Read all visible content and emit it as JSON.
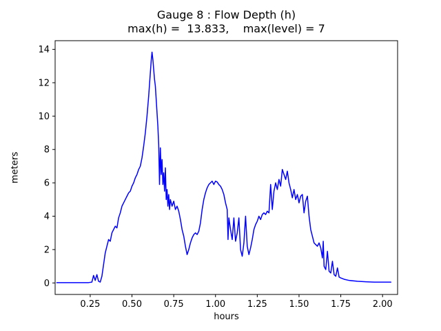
{
  "figure": {
    "title_line1": "Gauge 8 : Flow Depth (h)",
    "title_line2": "max(h) =  13.833,    max(level) = 7",
    "xlabel": "hours",
    "ylabel": "meters"
  },
  "chart_data": {
    "type": "line",
    "title": "Gauge 8 : Flow Depth (h)",
    "subtitle": "max(h) =  13.833,    max(level) = 7",
    "xlabel": "hours",
    "ylabel": "meters",
    "xlim": [
      0.04,
      2.09
    ],
    "ylim": [
      -0.69,
      14.52
    ],
    "xtick_labels": [
      "0.25",
      "0.50",
      "0.75",
      "1.00",
      "1.25",
      "1.50",
      "1.75",
      "2.00"
    ],
    "ytick_labels": [
      "0",
      "2",
      "4",
      "6",
      "8",
      "10",
      "12",
      "14"
    ],
    "grid": false,
    "legend": "none",
    "line_color": "#0000ff",
    "line_width": 1.5,
    "max_h": 13.833,
    "max_level": 7,
    "series": [
      {
        "name": "Flow Depth (h)",
        "points": [
          [
            0.05,
            0.02
          ],
          [
            0.1,
            0.02
          ],
          [
            0.15,
            0.02
          ],
          [
            0.2,
            0.02
          ],
          [
            0.24,
            0.02
          ],
          [
            0.26,
            0.05
          ],
          [
            0.27,
            0.45
          ],
          [
            0.28,
            0.15
          ],
          [
            0.29,
            0.5
          ],
          [
            0.3,
            0.1
          ],
          [
            0.31,
            0.05
          ],
          [
            0.32,
            0.4
          ],
          [
            0.33,
            1.1
          ],
          [
            0.34,
            1.8
          ],
          [
            0.35,
            2.2
          ],
          [
            0.36,
            2.6
          ],
          [
            0.37,
            2.5
          ],
          [
            0.38,
            3.0
          ],
          [
            0.39,
            3.2
          ],
          [
            0.4,
            3.4
          ],
          [
            0.41,
            3.3
          ],
          [
            0.42,
            3.9
          ],
          [
            0.43,
            4.2
          ],
          [
            0.44,
            4.6
          ],
          [
            0.45,
            4.8
          ],
          [
            0.46,
            5.0
          ],
          [
            0.47,
            5.2
          ],
          [
            0.48,
            5.4
          ],
          [
            0.49,
            5.5
          ],
          [
            0.5,
            5.8
          ],
          [
            0.51,
            6.0
          ],
          [
            0.52,
            6.3
          ],
          [
            0.53,
            6.5
          ],
          [
            0.54,
            6.8
          ],
          [
            0.55,
            7.0
          ],
          [
            0.56,
            7.5
          ],
          [
            0.57,
            8.2
          ],
          [
            0.58,
            9.0
          ],
          [
            0.59,
            10.0
          ],
          [
            0.6,
            11.2
          ],
          [
            0.61,
            12.6
          ],
          [
            0.615,
            13.3
          ],
          [
            0.62,
            13.833
          ],
          [
            0.625,
            13.4
          ],
          [
            0.63,
            12.8
          ],
          [
            0.635,
            12.2
          ],
          [
            0.64,
            11.8
          ],
          [
            0.645,
            11.0
          ],
          [
            0.65,
            10.2
          ],
          [
            0.655,
            9.4
          ],
          [
            0.66,
            8.3
          ],
          [
            0.665,
            5.9
          ],
          [
            0.67,
            8.1
          ],
          [
            0.675,
            6.5
          ],
          [
            0.68,
            7.4
          ],
          [
            0.685,
            5.9
          ],
          [
            0.69,
            6.6
          ],
          [
            0.695,
            5.5
          ],
          [
            0.7,
            6.9
          ],
          [
            0.705,
            5.0
          ],
          [
            0.71,
            5.6
          ],
          [
            0.715,
            4.6
          ],
          [
            0.72,
            5.3
          ],
          [
            0.725,
            4.4
          ],
          [
            0.73,
            5.0
          ],
          [
            0.74,
            4.6
          ],
          [
            0.75,
            4.9
          ],
          [
            0.76,
            4.4
          ],
          [
            0.77,
            4.6
          ],
          [
            0.78,
            4.3
          ],
          [
            0.79,
            3.8
          ],
          [
            0.8,
            3.2
          ],
          [
            0.81,
            2.8
          ],
          [
            0.82,
            2.2
          ],
          [
            0.83,
            1.7
          ],
          [
            0.84,
            2.0
          ],
          [
            0.85,
            2.4
          ],
          [
            0.86,
            2.7
          ],
          [
            0.87,
            2.9
          ],
          [
            0.88,
            3.0
          ],
          [
            0.89,
            2.9
          ],
          [
            0.9,
            3.1
          ],
          [
            0.91,
            3.6
          ],
          [
            0.92,
            4.4
          ],
          [
            0.93,
            5.0
          ],
          [
            0.94,
            5.4
          ],
          [
            0.95,
            5.7
          ],
          [
            0.96,
            5.9
          ],
          [
            0.97,
            6.0
          ],
          [
            0.98,
            6.1
          ],
          [
            0.99,
            5.9
          ],
          [
            1.0,
            6.1
          ],
          [
            1.01,
            6.05
          ],
          [
            1.02,
            5.9
          ],
          [
            1.03,
            5.8
          ],
          [
            1.04,
            5.6
          ],
          [
            1.05,
            5.3
          ],
          [
            1.06,
            4.8
          ],
          [
            1.07,
            4.4
          ],
          [
            1.075,
            2.6
          ],
          [
            1.08,
            3.9
          ],
          [
            1.09,
            3.2
          ],
          [
            1.1,
            2.6
          ],
          [
            1.11,
            3.9
          ],
          [
            1.12,
            2.5
          ],
          [
            1.13,
            3.0
          ],
          [
            1.14,
            3.9
          ],
          [
            1.15,
            2.0
          ],
          [
            1.16,
            1.6
          ],
          [
            1.17,
            2.4
          ],
          [
            1.18,
            4.0
          ],
          [
            1.19,
            2.2
          ],
          [
            1.2,
            1.7
          ],
          [
            1.21,
            2.1
          ],
          [
            1.22,
            2.6
          ],
          [
            1.23,
            3.2
          ],
          [
            1.24,
            3.5
          ],
          [
            1.25,
            3.7
          ],
          [
            1.26,
            4.0
          ],
          [
            1.27,
            3.8
          ],
          [
            1.28,
            4.1
          ],
          [
            1.29,
            4.2
          ],
          [
            1.3,
            4.1
          ],
          [
            1.31,
            4.3
          ],
          [
            1.32,
            4.2
          ],
          [
            1.33,
            5.9
          ],
          [
            1.34,
            4.4
          ],
          [
            1.35,
            5.5
          ],
          [
            1.36,
            6.0
          ],
          [
            1.37,
            5.6
          ],
          [
            1.38,
            6.2
          ],
          [
            1.39,
            5.8
          ],
          [
            1.4,
            6.8
          ],
          [
            1.41,
            6.5
          ],
          [
            1.42,
            6.2
          ],
          [
            1.43,
            6.7
          ],
          [
            1.44,
            6.0
          ],
          [
            1.45,
            5.6
          ],
          [
            1.46,
            5.1
          ],
          [
            1.47,
            5.6
          ],
          [
            1.48,
            5.0
          ],
          [
            1.49,
            5.3
          ],
          [
            1.5,
            4.8
          ],
          [
            1.51,
            5.2
          ],
          [
            1.52,
            5.3
          ],
          [
            1.53,
            4.2
          ],
          [
            1.54,
            4.9
          ],
          [
            1.55,
            5.2
          ],
          [
            1.56,
            4.0
          ],
          [
            1.57,
            3.2
          ],
          [
            1.58,
            2.8
          ],
          [
            1.59,
            2.4
          ],
          [
            1.6,
            2.3
          ],
          [
            1.61,
            2.2
          ],
          [
            1.62,
            2.4
          ],
          [
            1.63,
            2.1
          ],
          [
            1.64,
            1.5
          ],
          [
            1.645,
            2.5
          ],
          [
            1.65,
            1.0
          ],
          [
            1.66,
            0.8
          ],
          [
            1.67,
            1.9
          ],
          [
            1.68,
            0.7
          ],
          [
            1.69,
            0.6
          ],
          [
            1.7,
            1.3
          ],
          [
            1.71,
            0.5
          ],
          [
            1.72,
            0.4
          ],
          [
            1.73,
            0.9
          ],
          [
            1.74,
            0.35
          ],
          [
            1.75,
            0.3
          ],
          [
            1.77,
            0.22
          ],
          [
            1.8,
            0.15
          ],
          [
            1.85,
            0.1
          ],
          [
            1.9,
            0.07
          ],
          [
            1.95,
            0.05
          ],
          [
            2.0,
            0.05
          ],
          [
            2.05,
            0.05
          ]
        ]
      }
    ]
  }
}
